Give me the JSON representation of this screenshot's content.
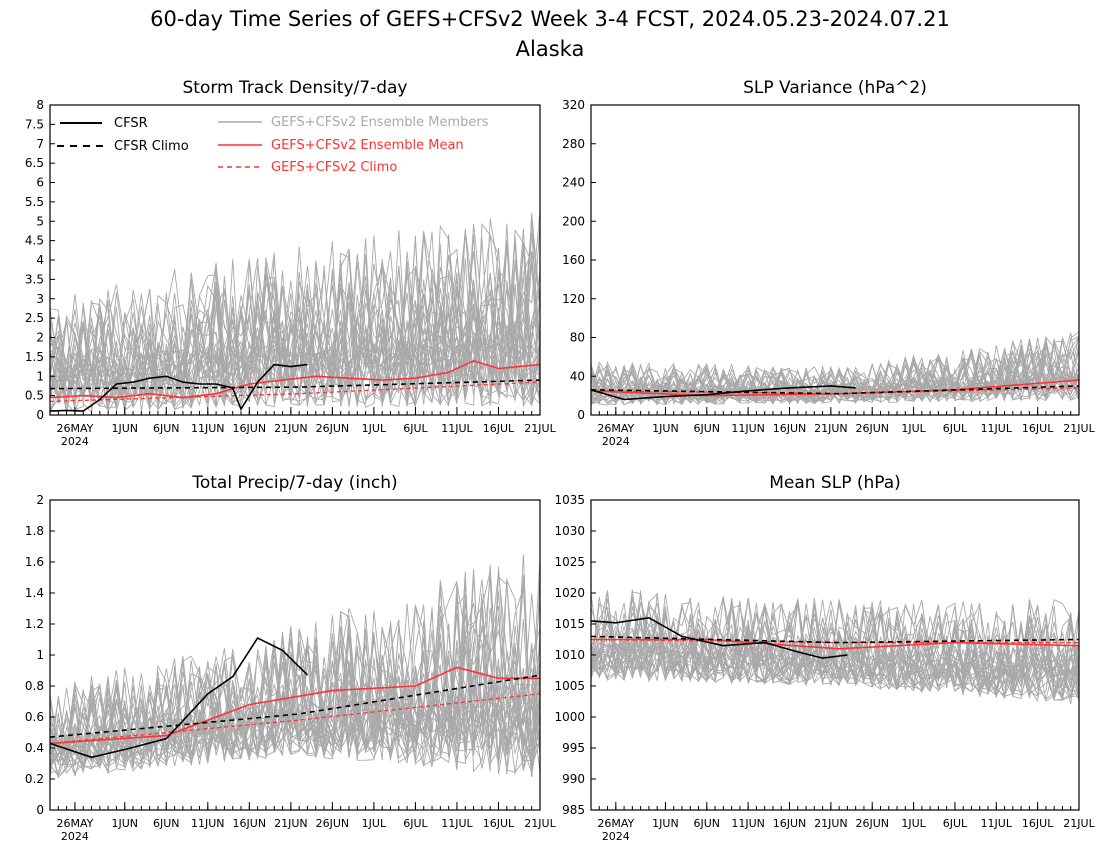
{
  "title": "60-day Time Series of GEFS+CFSv2 Week 3-4 FCST, 2024.05.23-2024.07.21",
  "subtitle": "Alaska",
  "colors": {
    "cfsr": "#000000",
    "members": "#a9a9a9",
    "ens_mean": "#ff3333",
    "climo_model": "#ff3333"
  },
  "legend": {
    "cfsr": "CFSR",
    "cfsr_climo": "CFSR Climo",
    "members": "GEFS+CFSv2 Ensemble Members",
    "ens_mean": "GEFS+CFSv2 Ensemble Mean",
    "model_climo": "GEFS+CFSv2 Climo"
  },
  "x_ticks": [
    "26MAY",
    "1JUN",
    "6JUN",
    "11JUN",
    "16JUN",
    "21JUN",
    "26JUN",
    "1JUL",
    "6JUL",
    "11JUL",
    "16JUL",
    "21JUL"
  ],
  "x_year": "2024",
  "chart_data": [
    {
      "type": "line",
      "title": "Storm Track Density/7-day",
      "ylim": [
        0,
        8
      ],
      "yticks": [
        "0",
        "0.5",
        "1",
        "1.5",
        "2",
        "2.5",
        "3",
        "3.5",
        "4",
        "4.5",
        "5",
        "5.5",
        "6",
        "6.5",
        "7",
        "7.5",
        "8"
      ],
      "legend_position": "top",
      "x": [
        "2024-05-23",
        "2024-07-21"
      ],
      "series": [
        {
          "name": "CFSR",
          "x": [
            "2024-05-23",
            "2024-05-25",
            "2024-05-27",
            "2024-05-29",
            "2024-05-31",
            "2024-06-02",
            "2024-06-04",
            "2024-06-06",
            "2024-06-08",
            "2024-06-10",
            "2024-06-12",
            "2024-06-14",
            "2024-06-15",
            "2024-06-17",
            "2024-06-19",
            "2024-06-21",
            "2024-06-23"
          ],
          "values": [
            0.1,
            0.12,
            0.1,
            0.4,
            0.8,
            0.85,
            0.95,
            1.0,
            0.85,
            0.8,
            0.8,
            0.7,
            0.15,
            0.85,
            1.3,
            1.25,
            1.3
          ]
        },
        {
          "name": "CFSR Climo",
          "x": [
            "2024-05-23",
            "2024-06-22",
            "2024-07-21"
          ],
          "values": [
            0.68,
            0.72,
            0.9
          ]
        },
        {
          "name": "GEFS+CFSv2 Ensemble Mean",
          "x": [
            "2024-05-23",
            "2024-05-27",
            "2024-05-31",
            "2024-06-04",
            "2024-06-08",
            "2024-06-12",
            "2024-06-16",
            "2024-06-20",
            "2024-06-24",
            "2024-06-28",
            "2024-07-02",
            "2024-07-06",
            "2024-07-10",
            "2024-07-13",
            "2024-07-16",
            "2024-07-21"
          ],
          "values": [
            0.45,
            0.5,
            0.45,
            0.55,
            0.45,
            0.55,
            0.8,
            0.9,
            1.0,
            0.95,
            0.9,
            0.95,
            1.1,
            1.4,
            1.2,
            1.3
          ]
        },
        {
          "name": "GEFS+CFSv2 Climo",
          "x": [
            "2024-05-23",
            "2024-06-22",
            "2024-07-21"
          ],
          "values": [
            0.35,
            0.55,
            0.85
          ]
        }
      ],
      "members_envelope": {
        "x": [
          "2024-05-23",
          "2024-06-15",
          "2024-07-21"
        ],
        "low": [
          0.0,
          0.2,
          0.2
        ],
        "high": [
          3.0,
          4.2,
          5.3
        ]
      }
    },
    {
      "type": "line",
      "title": "SLP Variance (hPa^2)",
      "ylim": [
        0,
        320
      ],
      "yticks": [
        "0",
        "40",
        "80",
        "120",
        "160",
        "200",
        "240",
        "280",
        "320"
      ],
      "x": [
        "2024-05-23",
        "2024-07-21"
      ],
      "series": [
        {
          "name": "CFSR",
          "x": [
            "2024-05-23",
            "2024-05-27",
            "2024-06-01",
            "2024-06-06",
            "2024-06-11",
            "2024-06-16",
            "2024-06-21",
            "2024-06-24"
          ],
          "values": [
            26,
            16,
            19,
            21,
            25,
            28,
            30,
            28
          ]
        },
        {
          "name": "CFSR Climo",
          "x": [
            "2024-05-23",
            "2024-06-22",
            "2024-07-21"
          ],
          "values": [
            26,
            22,
            30
          ]
        },
        {
          "name": "GEFS+CFSv2 Ensemble Mean",
          "x": [
            "2024-05-23",
            "2024-06-06",
            "2024-06-22",
            "2024-07-06",
            "2024-07-21"
          ],
          "values": [
            25,
            20,
            22,
            26,
            36
          ]
        },
        {
          "name": "GEFS+CFSv2 Climo",
          "x": [
            "2024-05-23",
            "2024-06-22",
            "2024-07-21"
          ],
          "values": [
            25,
            22,
            28
          ]
        }
      ],
      "members_envelope": {
        "x": [
          "2024-05-23",
          "2024-06-22",
          "2024-07-21"
        ],
        "low": [
          10,
          12,
          15
        ],
        "high": [
          55,
          50,
          88
        ]
      }
    },
    {
      "type": "line",
      "title": "Total Precip/7-day (inch)",
      "ylim": [
        0,
        2
      ],
      "yticks": [
        "0",
        "0.2",
        "0.4",
        "0.6",
        "0.8",
        "1",
        "1.2",
        "1.4",
        "1.6",
        "1.8",
        "2"
      ],
      "x": [
        "2024-05-23",
        "2024-07-21"
      ],
      "series": [
        {
          "name": "CFSR",
          "x": [
            "2024-05-23",
            "2024-05-28",
            "2024-06-01",
            "2024-06-06",
            "2024-06-11",
            "2024-06-14",
            "2024-06-17",
            "2024-06-20",
            "2024-06-23"
          ],
          "values": [
            0.43,
            0.34,
            0.39,
            0.46,
            0.75,
            0.86,
            1.11,
            1.03,
            0.87
          ]
        },
        {
          "name": "CFSR Climo",
          "x": [
            "2024-05-23",
            "2024-06-22",
            "2024-07-21"
          ],
          "values": [
            0.47,
            0.62,
            0.87
          ]
        },
        {
          "name": "GEFS+CFSv2 Ensemble Mean",
          "x": [
            "2024-05-23",
            "2024-06-06",
            "2024-06-16",
            "2024-06-26",
            "2024-07-06",
            "2024-07-11",
            "2024-07-16",
            "2024-07-21"
          ],
          "values": [
            0.43,
            0.48,
            0.68,
            0.77,
            0.8,
            0.92,
            0.85,
            0.85
          ]
        },
        {
          "name": "GEFS+CFSv2 Climo",
          "x": [
            "2024-05-23",
            "2024-06-22",
            "2024-07-21"
          ],
          "values": [
            0.43,
            0.58,
            0.75
          ]
        }
      ],
      "members_envelope": {
        "x": [
          "2024-05-23",
          "2024-06-22",
          "2024-07-21"
        ],
        "low": [
          0.2,
          0.35,
          0.2
        ],
        "high": [
          0.8,
          1.2,
          1.7
        ]
      }
    },
    {
      "type": "line",
      "title": "Mean SLP (hPa)",
      "ylim": [
        985,
        1035
      ],
      "yticks": [
        "985",
        "990",
        "995",
        "1000",
        "1005",
        "1010",
        "1015",
        "1020",
        "1025",
        "1030",
        "1035"
      ],
      "x": [
        "2024-05-23",
        "2024-07-21"
      ],
      "series": [
        {
          "name": "CFSR",
          "x": [
            "2024-05-23",
            "2024-05-26",
            "2024-05-30",
            "2024-06-03",
            "2024-06-08",
            "2024-06-13",
            "2024-06-17",
            "2024-06-20",
            "2024-06-23"
          ],
          "values": [
            1015.5,
            1015.2,
            1016,
            1013,
            1011.5,
            1012,
            1010.5,
            1009.5,
            1010
          ]
        },
        {
          "name": "CFSR Climo",
          "x": [
            "2024-05-23",
            "2024-06-22",
            "2024-07-21"
          ],
          "values": [
            1013,
            1012,
            1012.5
          ]
        },
        {
          "name": "GEFS+CFSv2 Ensemble Mean",
          "x": [
            "2024-05-23",
            "2024-06-06",
            "2024-06-22",
            "2024-07-06",
            "2024-07-21"
          ],
          "values": [
            1012.5,
            1012.5,
            1011,
            1012,
            1011.5
          ]
        },
        {
          "name": "GEFS+CFSv2 Climo",
          "x": [
            "2024-05-23",
            "2024-06-22",
            "2024-07-21"
          ],
          "values": [
            1012.5,
            1012,
            1012
          ]
        }
      ],
      "members_envelope": {
        "x": [
          "2024-05-23",
          "2024-06-22",
          "2024-07-21"
        ],
        "low": [
          1006,
          1005,
          1002
        ],
        "high": [
          1021,
          1019,
          1019
        ]
      }
    }
  ]
}
